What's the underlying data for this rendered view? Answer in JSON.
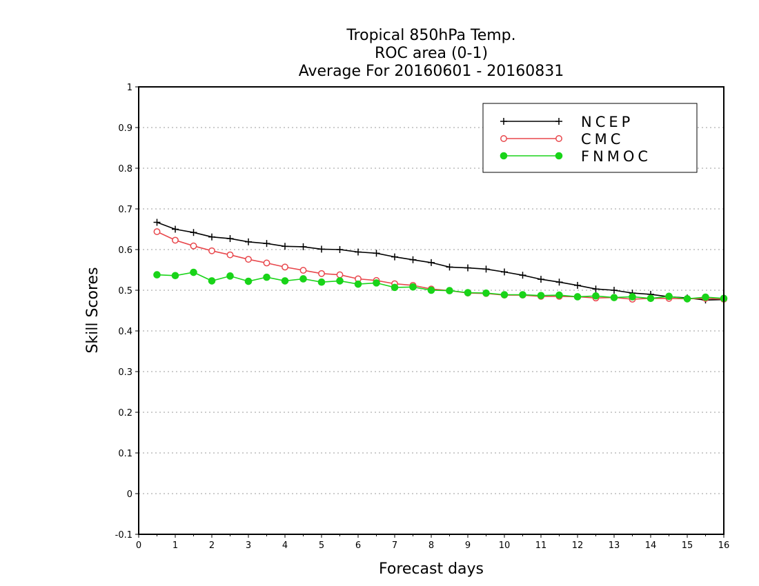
{
  "chart_data": {
    "type": "line",
    "title_lines": [
      "Tropical 850hPa Temp.",
      "ROC area (0-1)",
      "Average For 20160601 - 20160831"
    ],
    "xlabel": "Forecast days",
    "ylabel": "Skill Scores",
    "xlim": [
      0,
      16
    ],
    "ylim": [
      -0.1,
      1
    ],
    "x_ticks": [
      "0",
      "1",
      "2",
      "3",
      "4",
      "5",
      "6",
      "7",
      "8",
      "9",
      "10",
      "11",
      "12",
      "13",
      "14",
      "15",
      "16"
    ],
    "y_ticks": [
      "-0.1",
      "0",
      "0.1",
      "0.2",
      "0.3",
      "0.4",
      "0.5",
      "0.6",
      "0.7",
      "0.8",
      "0.9",
      "1"
    ],
    "grid": "horizontal dotted",
    "legend_position": "top-right",
    "x": [
      0.5,
      1,
      1.5,
      2,
      2.5,
      3,
      3.5,
      4,
      4.5,
      5,
      5.5,
      6,
      6.5,
      7,
      7.5,
      8,
      8.5,
      9,
      9.5,
      10,
      10.5,
      11,
      11.5,
      12,
      12.5,
      13,
      13.5,
      14,
      14.5,
      15,
      15.5,
      16
    ],
    "series": [
      {
        "name": "NCEP",
        "color": "#000000",
        "marker": "plus",
        "values": [
          0.667,
          0.65,
          0.642,
          0.631,
          0.627,
          0.619,
          0.615,
          0.608,
          0.607,
          0.601,
          0.6,
          0.594,
          0.591,
          0.582,
          0.575,
          0.568,
          0.557,
          0.555,
          0.552,
          0.545,
          0.537,
          0.527,
          0.52,
          0.512,
          0.503,
          0.5,
          0.493,
          0.49,
          0.484,
          0.481,
          0.476,
          0.477
        ]
      },
      {
        "name": "CMC",
        "color": "#e8474c",
        "marker": "open-circle",
        "values": [
          0.644,
          0.623,
          0.609,
          0.597,
          0.587,
          0.576,
          0.567,
          0.557,
          0.549,
          0.541,
          0.538,
          0.528,
          0.524,
          0.516,
          0.512,
          0.503,
          0.499,
          0.493,
          0.492,
          0.488,
          0.488,
          0.485,
          0.485,
          0.484,
          0.481,
          0.482,
          0.478,
          0.48,
          0.48,
          0.479,
          0.48,
          0.478
        ]
      },
      {
        "name": "FNMOC",
        "color": "#19d419",
        "marker": "filled-circle",
        "values": [
          0.538,
          0.536,
          0.544,
          0.523,
          0.535,
          0.522,
          0.532,
          0.523,
          0.528,
          0.52,
          0.523,
          0.515,
          0.518,
          0.507,
          0.508,
          0.5,
          0.499,
          0.494,
          0.493,
          0.489,
          0.489,
          0.487,
          0.488,
          0.484,
          0.486,
          0.482,
          0.484,
          0.48,
          0.485,
          0.479,
          0.483,
          0.48
        ]
      }
    ]
  }
}
